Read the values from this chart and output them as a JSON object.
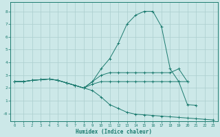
{
  "xlabel": "Humidex (Indice chaleur)",
  "bg_color": "#cce8e8",
  "line_color": "#1a7a6e",
  "grid_color": "#aacece",
  "xlim": [
    -0.5,
    23.5
  ],
  "ylim": [
    -0.6,
    8.7
  ],
  "xticks": [
    0,
    1,
    2,
    3,
    4,
    5,
    6,
    7,
    8,
    9,
    10,
    11,
    12,
    13,
    14,
    15,
    16,
    17,
    18,
    19,
    20,
    21,
    22,
    23
  ],
  "yticks": [
    0,
    1,
    2,
    3,
    4,
    5,
    6,
    7,
    8
  ],
  "ytick_labels": [
    "-0",
    "1",
    "2",
    "3",
    "4",
    "5",
    "6",
    "7",
    "8"
  ],
  "series": [
    {
      "x": [
        0,
        1,
        2,
        3,
        4,
        5,
        6,
        7,
        8,
        9,
        10,
        11,
        12,
        13,
        14,
        15,
        16,
        17,
        18,
        19,
        20,
        21,
        22
      ],
      "y": [
        2.5,
        2.5,
        2.6,
        2.65,
        2.7,
        2.6,
        2.4,
        2.2,
        2.0,
        2.5,
        3.5,
        4.3,
        5.5,
        7.0,
        7.7,
        8.0,
        8.0,
        6.8,
        3.5,
        2.5,
        0.7,
        0.65,
        null
      ]
    },
    {
      "x": [
        0,
        1,
        2,
        3,
        4,
        5,
        6,
        7,
        8,
        9,
        10,
        11,
        12,
        13,
        14,
        15,
        16,
        17,
        18,
        19,
        20
      ],
      "y": [
        2.5,
        2.5,
        2.6,
        2.65,
        2.7,
        2.6,
        2.4,
        2.2,
        2.0,
        2.5,
        3.0,
        3.2,
        3.2,
        3.2,
        3.2,
        3.2,
        3.2,
        3.2,
        3.2,
        3.5,
        2.5
      ]
    },
    {
      "x": [
        0,
        1,
        2,
        3,
        4,
        5,
        6,
        7,
        8,
        9,
        10,
        11,
        12,
        13,
        14,
        15,
        16,
        17,
        18,
        19,
        20
      ],
      "y": [
        2.5,
        2.5,
        2.6,
        2.65,
        2.7,
        2.6,
        2.4,
        2.2,
        2.0,
        2.3,
        2.5,
        2.5,
        2.5,
        2.5,
        2.5,
        2.5,
        2.5,
        2.5,
        2.5,
        2.5,
        2.5
      ]
    },
    {
      "x": [
        0,
        1,
        2,
        3,
        4,
        5,
        6,
        7,
        8,
        9,
        10,
        11,
        12,
        13,
        14,
        15,
        16,
        17,
        18,
        19,
        20,
        21,
        22,
        23
      ],
      "y": [
        2.5,
        2.5,
        2.6,
        2.65,
        2.7,
        2.6,
        2.4,
        2.2,
        2.0,
        1.8,
        1.3,
        0.7,
        0.4,
        0.1,
        -0.05,
        -0.1,
        -0.15,
        -0.2,
        -0.25,
        -0.3,
        -0.35,
        -0.4,
        -0.45,
        -0.5
      ]
    }
  ]
}
